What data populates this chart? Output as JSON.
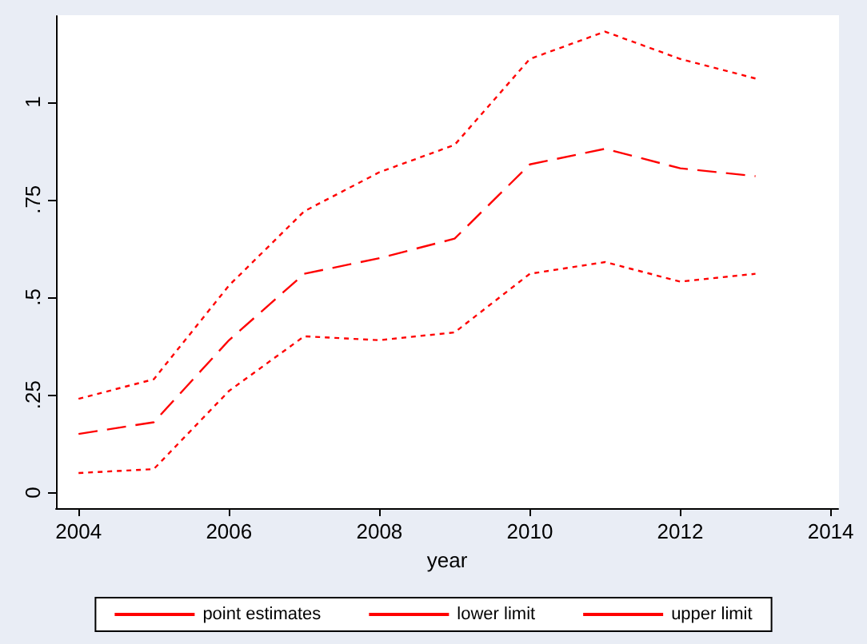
{
  "chart_data": {
    "type": "line",
    "xlabel": "year",
    "x": [
      2004,
      2005,
      2006,
      2007,
      2008,
      2009,
      2010,
      2011,
      2012,
      2013
    ],
    "series": [
      {
        "name": "point estimates",
        "color": "#ff0000",
        "line_style": "dashed",
        "values": [
          0.15,
          0.18,
          0.39,
          0.56,
          0.6,
          0.65,
          0.84,
          0.88,
          0.83,
          0.81
        ]
      },
      {
        "name": "lower limit",
        "color": "#ff0000",
        "line_style": "dotted",
        "values": [
          0.05,
          0.06,
          0.26,
          0.4,
          0.39,
          0.41,
          0.56,
          0.59,
          0.54,
          0.56
        ]
      },
      {
        "name": "upper limit",
        "color": "#ff0000",
        "line_style": "dotted",
        "values": [
          0.24,
          0.29,
          0.53,
          0.72,
          0.82,
          0.89,
          1.11,
          1.18,
          1.11,
          1.06
        ]
      }
    ],
    "xlim": [
      2003.7,
      2014.1
    ],
    "xticks": [
      2004,
      2006,
      2008,
      2010,
      2012,
      2014
    ],
    "ylim": [
      -0.04,
      1.22
    ],
    "yticks": [
      {
        "value": 0,
        "label": "0"
      },
      {
        "value": 0.25,
        "label": ".25"
      },
      {
        "value": 0.5,
        "label": ".5"
      },
      {
        "value": 0.75,
        "label": ".75"
      },
      {
        "value": 1,
        "label": "1"
      }
    ],
    "grid": false,
    "legend": "bottom",
    "marker": "none"
  }
}
